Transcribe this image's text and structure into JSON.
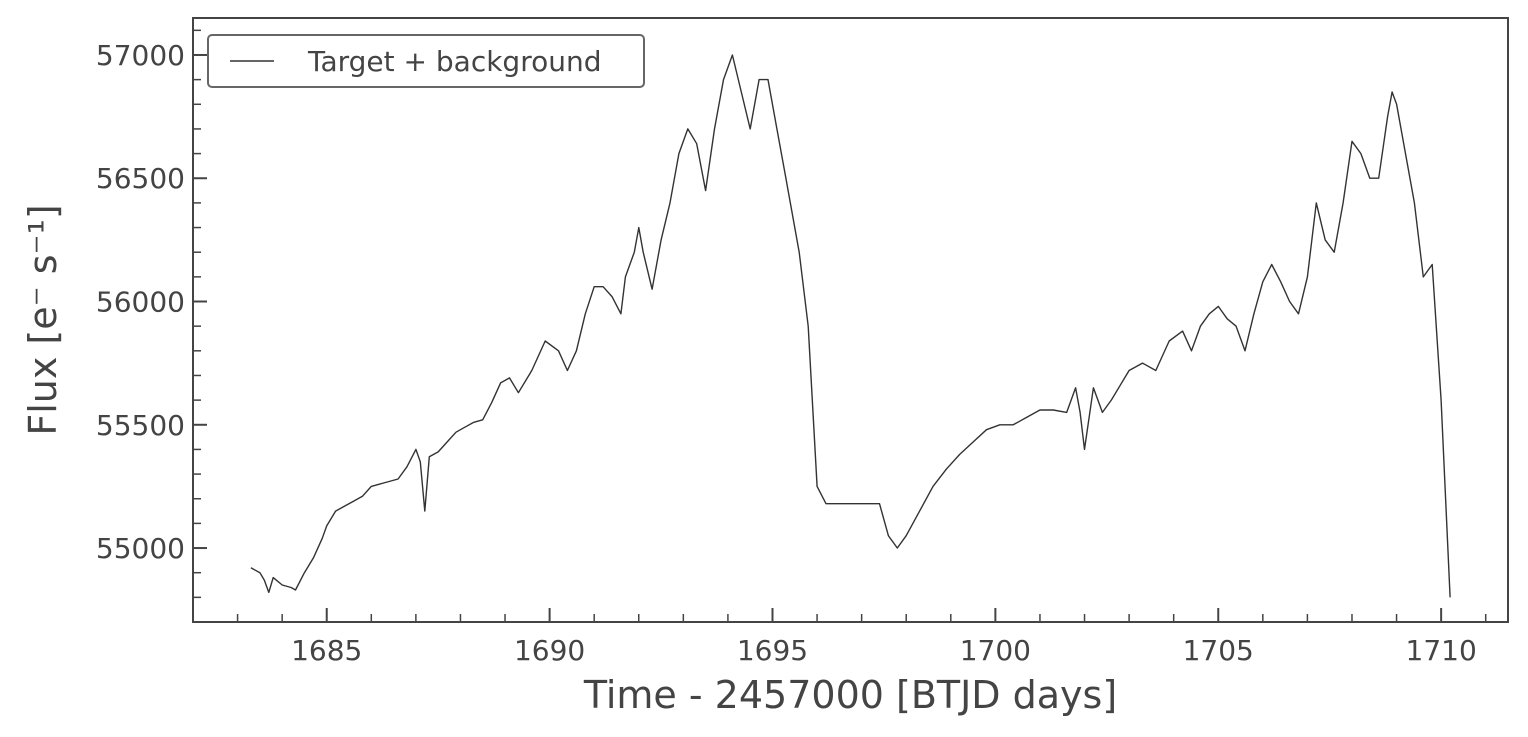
{
  "chart_data": {
    "type": "line",
    "xlabel": "Time - 2457000 [BTJD days]",
    "ylabel": "Flux [e⁻ s⁻¹]",
    "xlim": [
      1682.0,
      1711.5
    ],
    "ylim": [
      54700,
      57150
    ],
    "x_ticks": [
      1685,
      1690,
      1695,
      1700,
      1705,
      1710
    ],
    "x_tick_labels": [
      "1685",
      "1690",
      "1695",
      "1700",
      "1705",
      "1710"
    ],
    "x_minor_step": 1,
    "y_ticks": [
      55000,
      55500,
      56000,
      56500,
      57000
    ],
    "y_tick_labels": [
      "55000",
      "55500",
      "56000",
      "56500",
      "57000"
    ],
    "y_minor_step": 100,
    "grid": false,
    "legend_position": "top-left",
    "line_color": "#333333",
    "series": [
      {
        "name": "Target + background",
        "x": [
          1683.3,
          1683.5,
          1683.6,
          1683.7,
          1683.8,
          1684.0,
          1684.2,
          1684.3,
          1684.5,
          1684.7,
          1684.9,
          1685.0,
          1685.2,
          1685.4,
          1685.6,
          1685.8,
          1686.0,
          1686.2,
          1686.4,
          1686.6,
          1686.8,
          1687.0,
          1687.1,
          1687.2,
          1687.3,
          1687.5,
          1687.7,
          1687.9,
          1688.1,
          1688.3,
          1688.5,
          1688.7,
          1688.9,
          1689.1,
          1689.3,
          1689.6,
          1689.9,
          1690.2,
          1690.4,
          1690.6,
          1690.8,
          1691.0,
          1691.2,
          1691.4,
          1691.6,
          1691.7,
          1691.9,
          1692.0,
          1692.1,
          1692.3,
          1692.5,
          1692.7,
          1692.9,
          1693.1,
          1693.3,
          1693.5,
          1693.7,
          1693.9,
          1694.1,
          1694.3,
          1694.5,
          1694.7,
          1694.9,
          1695.1,
          1695.3,
          1695.6,
          1695.8,
          1696.0,
          1696.2,
          1696.4,
          1697.0,
          1697.4,
          1697.6,
          1697.8,
          1698.0,
          1698.3,
          1698.6,
          1698.9,
          1699.2,
          1699.5,
          1699.8,
          1700.1,
          1700.4,
          1700.7,
          1701.0,
          1701.3,
          1701.6,
          1701.8,
          1701.9,
          1702.0,
          1702.2,
          1702.4,
          1702.6,
          1702.8,
          1703.0,
          1703.3,
          1703.6,
          1703.9,
          1704.2,
          1704.4,
          1704.6,
          1704.8,
          1705.0,
          1705.2,
          1705.4,
          1705.6,
          1705.8,
          1706.0,
          1706.2,
          1706.4,
          1706.6,
          1706.8,
          1707.0,
          1707.2,
          1707.4,
          1707.6,
          1707.8,
          1708.0,
          1708.2,
          1708.4,
          1708.6,
          1708.8,
          1708.9,
          1709.0,
          1709.2,
          1709.4,
          1709.6,
          1709.8,
          1710.0,
          1710.2
        ],
        "y": [
          54920,
          54900,
          54870,
          54820,
          54880,
          54850,
          54840,
          54830,
          54900,
          54960,
          55040,
          55090,
          55150,
          55170,
          55190,
          55210,
          55250,
          55260,
          55270,
          55280,
          55330,
          55400,
          55350,
          55150,
          55370,
          55390,
          55430,
          55470,
          55490,
          55510,
          55520,
          55590,
          55670,
          55690,
          55630,
          55720,
          55840,
          55800,
          55720,
          55800,
          55950,
          56060,
          56060,
          56020,
          55950,
          56100,
          56200,
          56300,
          56200,
          56050,
          56250,
          56400,
          56600,
          56700,
          56640,
          56450,
          56700,
          56900,
          57000,
          56850,
          56700,
          56900,
          56900,
          56700,
          56500,
          56200,
          55900,
          55250,
          55180,
          55180,
          55180,
          55180,
          55050,
          55000,
          55050,
          55150,
          55250,
          55320,
          55380,
          55430,
          55480,
          55500,
          55500,
          55530,
          55560,
          55560,
          55550,
          55650,
          55550,
          55400,
          55650,
          55550,
          55600,
          55660,
          55720,
          55750,
          55720,
          55840,
          55880,
          55800,
          55900,
          55950,
          55980,
          55930,
          55900,
          55800,
          55950,
          56080,
          56150,
          56080,
          56000,
          55950,
          56100,
          56400,
          56250,
          56200,
          56400,
          56650,
          56600,
          56500,
          56500,
          56750,
          56850,
          56800,
          56600,
          56400,
          56100,
          56150,
          55600,
          54800
        ]
      }
    ]
  }
}
